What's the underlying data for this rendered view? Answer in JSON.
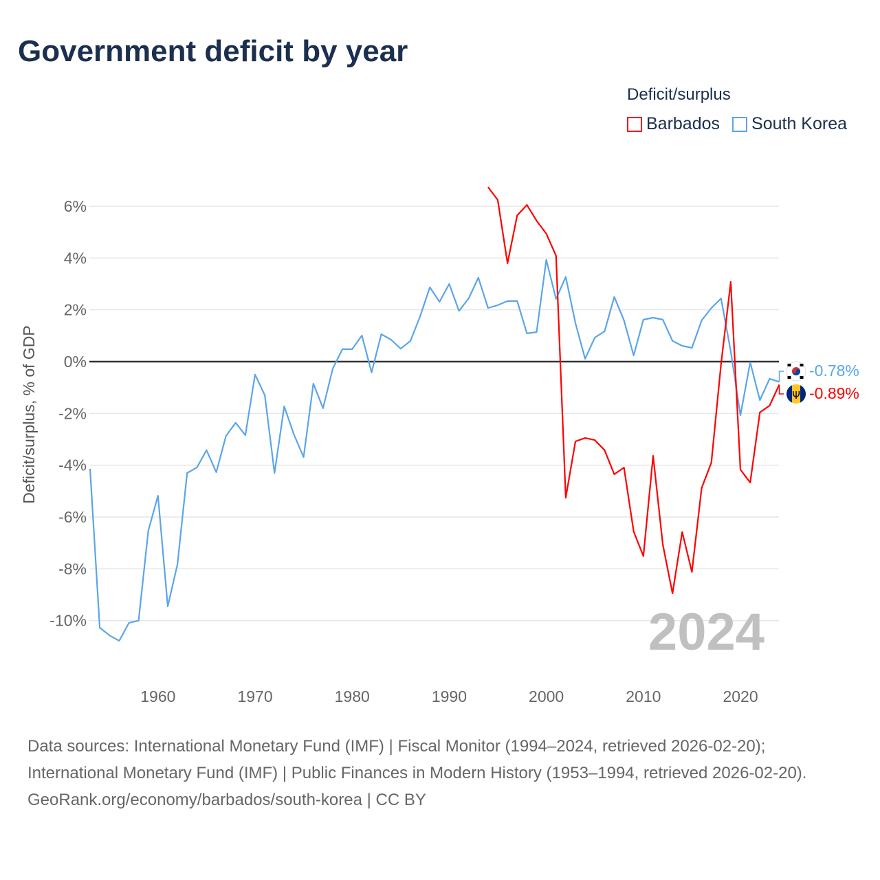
{
  "title": "Government deficit by year",
  "legend": {
    "title": "Deficit/surplus",
    "items": [
      {
        "label": "Barbados",
        "color": "#ff0000"
      },
      {
        "label": "South Korea",
        "color": "#5aa5ea"
      }
    ]
  },
  "footer": {
    "sources": "Data sources: International Monetary Fund (IMF) | Fiscal Monitor (1994–2024, retrieved 2026-02-20); International Monetary Fund (IMF) | Public Finances in Modern History (1953–1994, retrieved 2026-02-20).",
    "attribution": "GeoRank.org/economy/barbados/south-korea | CC BY"
  },
  "chart_data": {
    "type": "line",
    "title": "Government deficit by year",
    "xlabel": "",
    "ylabel": "Deficit/surplus, % of GDP",
    "xlim": [
      1953,
      2024
    ],
    "ylim": [
      -11.5,
      7
    ],
    "x_ticks": [
      1960,
      1970,
      1980,
      1990,
      2000,
      2010,
      2020
    ],
    "y_ticks": [
      6,
      4,
      2,
      0,
      -2,
      -4,
      -6,
      -8,
      -10
    ],
    "y_tick_labels": [
      "6%",
      "4%",
      "2%",
      "0%",
      "-2%",
      "-4%",
      "-6%",
      "-8%",
      "-10%"
    ],
    "watermark_year": "2024",
    "series": [
      {
        "name": "South Korea",
        "color": "#5aa5ea",
        "end_label": "-0.78%",
        "start_year": 1953,
        "values": [
          -4.14,
          -10.27,
          -10.57,
          -10.78,
          -10.09,
          -10.0,
          -6.53,
          -5.18,
          -9.45,
          -7.83,
          -4.3,
          -4.09,
          -3.42,
          -4.27,
          -2.87,
          -2.36,
          -2.84,
          -0.5,
          -1.3,
          -4.3,
          -1.73,
          -2.81,
          -3.69,
          -0.85,
          -1.8,
          -0.27,
          0.48,
          0.48,
          1.01,
          -0.42,
          1.06,
          0.85,
          0.5,
          0.8,
          1.75,
          2.87,
          2.31,
          3.0,
          1.96,
          2.44,
          3.24,
          2.07,
          2.18,
          2.34,
          2.34,
          1.09,
          1.14,
          3.93,
          2.42,
          3.27,
          1.49,
          0.11,
          0.93,
          1.17,
          2.5,
          1.59,
          0.24,
          1.62,
          1.7,
          1.62,
          0.8,
          0.61,
          0.53,
          1.59,
          2.07,
          2.44,
          0.4,
          -2.07,
          -0.03,
          -1.49,
          -0.66,
          -0.78
        ]
      },
      {
        "name": "Barbados",
        "color": "#ff0000",
        "end_label": "-0.89%",
        "start_year": 1994,
        "values": [
          6.74,
          6.24,
          3.8,
          5.65,
          6.05,
          5.44,
          4.94,
          4.09,
          -5.26,
          -3.08,
          -2.95,
          -3.03,
          -3.42,
          -4.35,
          -4.09,
          -6.56,
          -7.51,
          -3.64,
          -7.06,
          -8.95,
          -6.58,
          -8.12,
          -4.88,
          -3.9,
          -0.1,
          3.08,
          -4.17,
          -4.67,
          -1.96,
          -1.7,
          -0.89
        ]
      }
    ]
  }
}
